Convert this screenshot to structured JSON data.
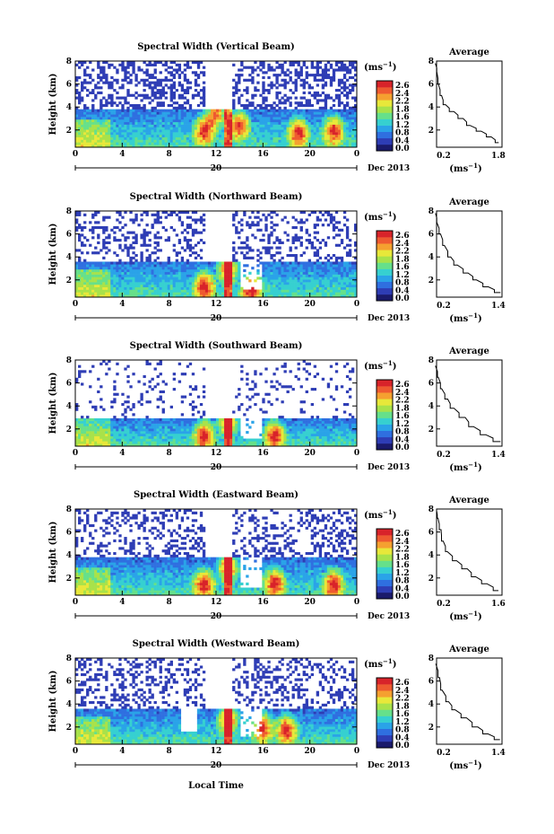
{
  "figure": {
    "xlabel": "Local Time",
    "date_label": "Dec 2013",
    "day_label": "20"
  },
  "colorbar": {
    "unit": "(ms",
    "unit_exp": "−1",
    "unit_close": ")",
    "ticks": [
      "2.6",
      "2.4",
      "2.2",
      "1.8",
      "1.6",
      "1.2",
      "0.8",
      "0.4",
      "0.0"
    ],
    "colors": [
      "#1a1a6b",
      "#2e3db5",
      "#2f6fe0",
      "#2aa3e8",
      "#36d0d0",
      "#66e08a",
      "#a8e24a",
      "#e8e83a",
      "#f5a030",
      "#ee5a30",
      "#d8232a"
    ]
  },
  "chart_data": [
    {
      "type": "heatmap",
      "title": "Spectral Width (Vertical Beam)",
      "ylabel": "Height (km)",
      "ylim": [
        0.5,
        8
      ],
      "yticks": [
        "8",
        "6",
        "4",
        "2"
      ],
      "xlim": [
        0,
        24
      ],
      "xticks": [
        "0",
        "4",
        "8",
        "12",
        "16",
        "20",
        "0"
      ],
      "side_title": "Average",
      "side_xticks": [
        "0.2",
        "1.8"
      ],
      "side_xlabel": "(ms",
      "side_profile": [
        [
          1.75,
          0.9
        ],
        [
          1.55,
          1.4
        ],
        [
          1.3,
          1.9
        ],
        [
          1.05,
          2.4
        ],
        [
          0.85,
          3.0
        ],
        [
          0.6,
          3.6
        ],
        [
          0.4,
          4.2
        ],
        [
          0.3,
          5.0
        ],
        [
          0.25,
          6.0
        ],
        [
          0.22,
          7.0
        ],
        [
          0.2,
          7.8
        ]
      ],
      "bands": {
        "low_top": 3.8,
        "hot_spots": [
          [
            11,
            2
          ],
          [
            12,
            3.5
          ],
          [
            14,
            2.5
          ],
          [
            19,
            1.8
          ],
          [
            22,
            2
          ]
        ]
      }
    },
    {
      "type": "heatmap",
      "title": "Spectral Width (Northward Beam)",
      "ylabel": "Height (km)",
      "ylim": [
        0.5,
        8
      ],
      "yticks": [
        "8",
        "6",
        "4",
        "2"
      ],
      "xlim": [
        0,
        24
      ],
      "xticks": [
        "0",
        "4",
        "8",
        "12",
        "16",
        "20",
        "0"
      ],
      "side_title": "Average",
      "side_xticks": [
        "0.2",
        "1.4"
      ],
      "side_xlabel": "(ms",
      "side_profile": [
        [
          1.35,
          0.9
        ],
        [
          1.15,
          1.4
        ],
        [
          0.95,
          2.0
        ],
        [
          0.8,
          2.6
        ],
        [
          0.6,
          3.3
        ],
        [
          0.45,
          4.0
        ],
        [
          0.35,
          5.0
        ],
        [
          0.28,
          6.0
        ],
        [
          0.22,
          7.0
        ],
        [
          0.2,
          7.8
        ]
      ],
      "bands": {
        "low_top": 3.6,
        "hot_spots": [
          [
            11,
            1.5
          ],
          [
            13,
            3
          ],
          [
            15,
            1.2
          ]
        ]
      }
    },
    {
      "type": "heatmap",
      "title": "Spectral Width (Southward Beam)",
      "ylabel": "Height (km)",
      "ylim": [
        0.5,
        8
      ],
      "yticks": [
        "8",
        "6",
        "4",
        "2"
      ],
      "xlim": [
        0,
        24
      ],
      "xticks": [
        "0",
        "4",
        "8",
        "12",
        "16",
        "20",
        "0"
      ],
      "side_title": "Average",
      "side_xticks": [
        "0.2",
        "1.4"
      ],
      "side_xlabel": "(ms",
      "side_profile": [
        [
          1.35,
          0.9
        ],
        [
          1.1,
          1.5
        ],
        [
          0.9,
          2.2
        ],
        [
          0.7,
          3.0
        ],
        [
          0.5,
          3.8
        ],
        [
          0.38,
          4.6
        ],
        [
          0.3,
          5.5
        ],
        [
          0.25,
          6.5
        ],
        [
          0.2,
          7.5
        ]
      ],
      "bands": {
        "low_top": 3.0,
        "hot_spots": [
          [
            11,
            1.5
          ],
          [
            13,
            2.8
          ],
          [
            17,
            1.5
          ]
        ]
      }
    },
    {
      "type": "heatmap",
      "title": "Spectral Width (Eastward Beam)",
      "ylabel": "Height (km)",
      "ylim": [
        0.5,
        8
      ],
      "yticks": [
        "8",
        "6",
        "4",
        "2"
      ],
      "xlim": [
        0,
        24
      ],
      "xticks": [
        "0",
        "4",
        "8",
        "12",
        "16",
        "20",
        "0"
      ],
      "side_title": "Average",
      "side_xticks": [
        "0.2",
        "1.6"
      ],
      "side_xlabel": "(ms",
      "side_profile": [
        [
          1.55,
          0.9
        ],
        [
          1.3,
          1.5
        ],
        [
          1.05,
          2.1
        ],
        [
          0.85,
          2.8
        ],
        [
          0.62,
          3.5
        ],
        [
          0.45,
          4.3
        ],
        [
          0.35,
          5.2
        ],
        [
          0.27,
          6.2
        ],
        [
          0.22,
          7.2
        ],
        [
          0.2,
          7.8
        ]
      ],
      "bands": {
        "low_top": 3.7,
        "hot_spots": [
          [
            11,
            1.5
          ],
          [
            13,
            3
          ],
          [
            17,
            1.6
          ],
          [
            22,
            1.5
          ]
        ]
      }
    },
    {
      "type": "heatmap",
      "title": "Spectral Width (Westward Beam)",
      "ylabel": "Height (km)",
      "ylim": [
        0.5,
        8
      ],
      "yticks": [
        "8",
        "6",
        "4",
        "2"
      ],
      "xlim": [
        0,
        24
      ],
      "xticks": [
        "0",
        "4",
        "8",
        "12",
        "16",
        "20",
        "0"
      ],
      "side_title": "Average",
      "side_xticks": [
        "0.2",
        "1.4"
      ],
      "side_xlabel": "(ms",
      "side_profile": [
        [
          1.35,
          0.9
        ],
        [
          1.15,
          1.4
        ],
        [
          0.95,
          2.0
        ],
        [
          0.75,
          2.8
        ],
        [
          0.55,
          3.5
        ],
        [
          0.42,
          4.2
        ],
        [
          0.32,
          5.2
        ],
        [
          0.25,
          6.3
        ],
        [
          0.2,
          7.5
        ]
      ],
      "bands": {
        "low_top": 3.5,
        "hot_spots": [
          [
            13,
            2.8
          ],
          [
            16,
            2
          ],
          [
            18,
            1.8
          ]
        ]
      }
    }
  ]
}
